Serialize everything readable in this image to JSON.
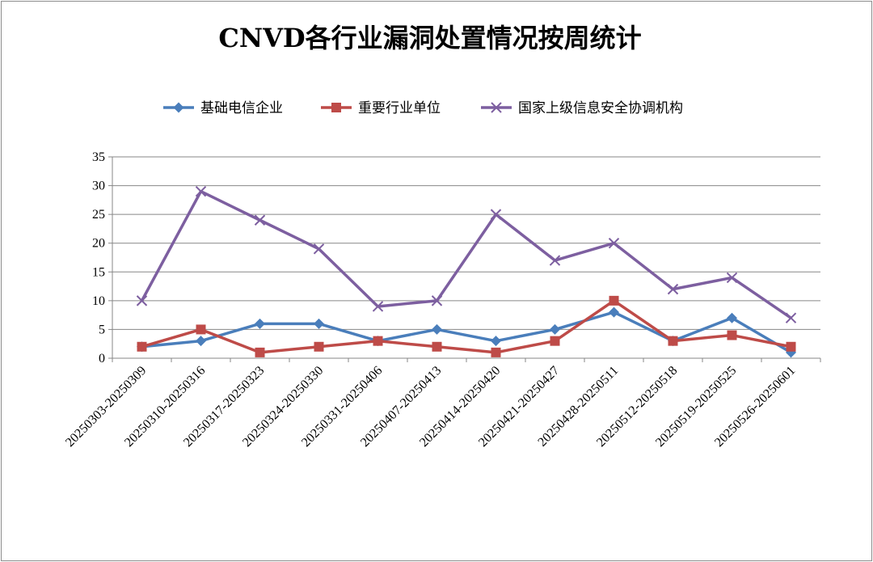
{
  "chart_data": {
    "type": "line",
    "title": "CNVD各行业漏洞处置情况按周统计",
    "xlabel": "",
    "ylabel": "",
    "ylim": [
      0,
      35
    ],
    "yticks": [
      0,
      5,
      10,
      15,
      20,
      25,
      30,
      35
    ],
    "grid": true,
    "legend_position": "top",
    "categories": [
      "20250303-20250309",
      "20250310-20250316",
      "20250317-20250323",
      "20250324-20250330",
      "20250331-20250406",
      "20250407-20250413",
      "20250414-20250420",
      "20250421-20250427",
      "20250428-20250511",
      "20250512-20250518",
      "20250519-20250525",
      "20250526-20250601"
    ],
    "series": [
      {
        "name": "基础电信企业",
        "color": "#4a7ebb",
        "marker": "diamond",
        "values": [
          2,
          3,
          6,
          6,
          3,
          5,
          3,
          5,
          8,
          3,
          7,
          1
        ]
      },
      {
        "name": "重要行业单位",
        "color": "#be4b48",
        "marker": "square",
        "values": [
          2,
          5,
          1,
          2,
          3,
          2,
          1,
          3,
          10,
          3,
          4,
          2
        ]
      },
      {
        "name": "国家上级信息安全协调机构",
        "color": "#7d5fa0",
        "marker": "x",
        "values": [
          10,
          29,
          24,
          19,
          9,
          10,
          25,
          17,
          20,
          12,
          14,
          7
        ]
      }
    ]
  }
}
